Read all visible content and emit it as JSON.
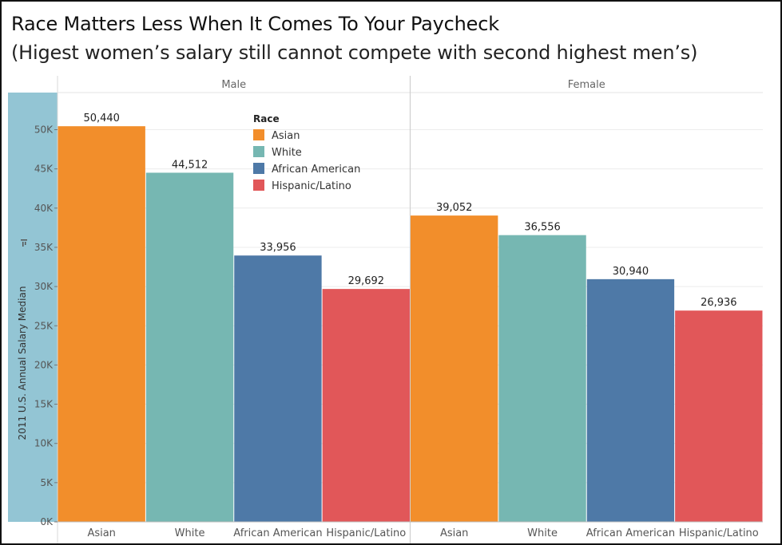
{
  "title": "Race Matters Less When  It Comes To Your Paycheck",
  "subtitle": "(Higest women’s salary still cannot compete with second highest men’s)",
  "chart_data": {
    "type": "bar",
    "title": "Race Matters Less When  It Comes To Your Paycheck",
    "subtitle": "(Higest women’s salary still cannot compete with second highest men’s)",
    "ylabel": "2011 U.S. Annual Salary Median",
    "xlabel": "",
    "ylim": [
      0,
      55000
    ],
    "yticks": [
      0,
      5000,
      10000,
      15000,
      20000,
      25000,
      30000,
      35000,
      40000,
      45000,
      50000
    ],
    "ytick_labels": [
      "0K",
      "5K",
      "10K",
      "15K",
      "20K",
      "25K",
      "30K",
      "35K",
      "40K",
      "45K",
      "50K"
    ],
    "grid": true,
    "legend_title": "Race",
    "legend_position": "top-center",
    "categories": [
      "Asian",
      "White",
      "African American",
      "Hispanic/Latino"
    ],
    "colors": {
      "Asian": "#f28e2b",
      "White": "#76b7b2",
      "African American": "#4e79a7",
      "Hispanic/Latino": "#e15759"
    },
    "panels": [
      {
        "name": "Male",
        "values": [
          50440,
          44512,
          33956,
          29692
        ],
        "value_labels": [
          "50,440",
          "44,512",
          "33,956",
          "29,692"
        ]
      },
      {
        "name": "Female",
        "values": [
          39052,
          36556,
          30940,
          26936
        ],
        "value_labels": [
          "39,052",
          "36,556",
          "30,940",
          "26,936"
        ]
      }
    ]
  }
}
